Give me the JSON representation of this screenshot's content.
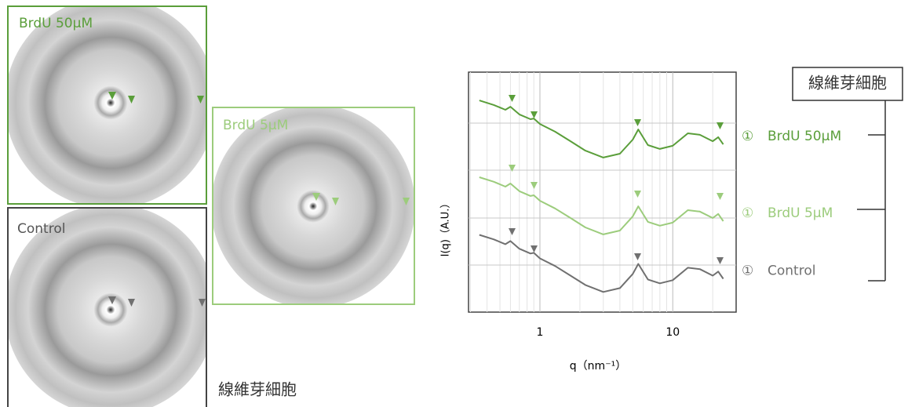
{
  "panels": [
    {
      "label": "BrdU 50μM"
    },
    {
      "label": "BrdU 5μM"
    },
    {
      "label": "Control"
    }
  ],
  "caption": "線維芽細胞",
  "legend_box": "線維芽細胞",
  "chart_data": {
    "type": "line",
    "xlabel": "q（nm⁻¹）",
    "ylabel": "I(q)（A.U.）",
    "xscale": "log",
    "xlim": [
      0.29,
      30
    ],
    "xticks": [
      1,
      10
    ],
    "ylim": [
      0,
      10
    ],
    "grid": true,
    "x": [
      0.35,
      0.45,
      0.55,
      0.6,
      0.7,
      0.85,
      0.9,
      1.0,
      1.3,
      1.7,
      2.2,
      3,
      4,
      5,
      5.5,
      6.5,
      8,
      10,
      13,
      16,
      20,
      22,
      24
    ],
    "series": [
      {
        "name": "BrdU 50μM",
        "marker": "①",
        "color": "#5a9e3a",
        "values": [
          8.82,
          8.63,
          8.43,
          8.56,
          8.24,
          8.04,
          8.07,
          7.84,
          7.52,
          7.12,
          6.73,
          6.44,
          6.6,
          7.19,
          7.61,
          6.96,
          6.8,
          6.93,
          7.45,
          7.39,
          7.12,
          7.29,
          6.99
        ]
      },
      {
        "name": "BrdU 5μM",
        "marker": "①",
        "color": "#9ccc7c",
        "values": [
          5.62,
          5.43,
          5.23,
          5.36,
          5.04,
          4.84,
          4.87,
          4.64,
          4.32,
          3.92,
          3.53,
          3.24,
          3.4,
          3.99,
          4.41,
          3.76,
          3.6,
          3.73,
          4.25,
          4.19,
          3.92,
          4.09,
          3.79
        ]
      },
      {
        "name": "Control",
        "marker": "①",
        "color": "#707070",
        "values": [
          3.22,
          3.03,
          2.83,
          2.96,
          2.64,
          2.44,
          2.47,
          2.24,
          1.92,
          1.52,
          1.13,
          0.84,
          1.0,
          1.59,
          2.01,
          1.36,
          1.2,
          1.33,
          1.85,
          1.79,
          1.52,
          1.69,
          1.39
        ]
      }
    ]
  }
}
